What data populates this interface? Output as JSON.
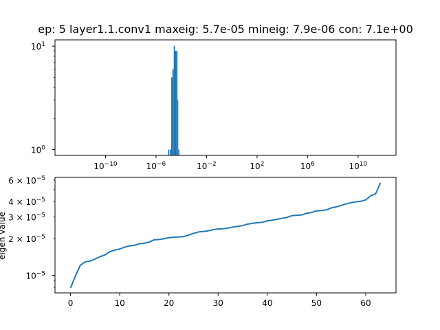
{
  "chart_data": [
    {
      "type": "bar",
      "title": "ep: 5 layer1.1.conv1 maxeig: 5.7e-05 mineig: 7.9e-06 con: 7.1e+00",
      "xscale": "log",
      "yscale": "log",
      "xlim_exp": [
        -14,
        13
      ],
      "ylim": [
        0.88,
        11.5
      ],
      "color": "#1f77b4",
      "x_ticks": [
        {
          "exp": -10,
          "label": "10",
          "sup": "−10"
        },
        {
          "exp": -6,
          "label": "10",
          "sup": "−6"
        },
        {
          "exp": -2,
          "label": "10",
          "sup": "−2"
        },
        {
          "exp": 2,
          "label": "10",
          "sup": "2"
        },
        {
          "exp": 6,
          "label": "10",
          "sup": "6"
        },
        {
          "exp": 10,
          "label": "10",
          "sup": "10"
        }
      ],
      "y_ticks": [
        {
          "value": 1,
          "label": "10",
          "sup": "0"
        },
        {
          "value": 10,
          "label": "10",
          "sup": "1"
        }
      ],
      "bins": [
        {
          "x_exp_start": -5.05,
          "x_exp_end": -4.95,
          "count": 1
        },
        {
          "x_exp_start": -4.9,
          "x_exp_end": -4.8,
          "count": 1
        },
        {
          "x_exp_start": -4.8,
          "x_exp_end": -4.7,
          "count": 5
        },
        {
          "x_exp_start": -4.7,
          "x_exp_end": -4.6,
          "count": 6
        },
        {
          "x_exp_start": -4.6,
          "x_exp_end": -4.5,
          "count": 10
        },
        {
          "x_exp_start": -4.5,
          "x_exp_end": -4.4,
          "count": 9
        },
        {
          "x_exp_start": -4.4,
          "x_exp_end": -4.3,
          "count": 9
        },
        {
          "x_exp_start": -4.3,
          "x_exp_end": -4.24,
          "count": 3
        },
        {
          "x_exp_start": -4.24,
          "x_exp_end": -4.15,
          "count": 1
        }
      ]
    },
    {
      "type": "line",
      "xscale": "linear",
      "yscale": "log",
      "ylabel": "eigen value",
      "xlim": [
        -3.15,
        66.15
      ],
      "ylim": [
        7.2e-06,
        6.3e-05
      ],
      "color": "#1f77b4",
      "x_ticks": [
        0,
        10,
        20,
        30,
        40,
        50,
        60
      ],
      "y_ticks": [
        {
          "value": 1e-05,
          "label": "10",
          "sup": "−5"
        },
        {
          "value": 2e-05,
          "label": "2 × 10",
          "sup": "−5"
        },
        {
          "value": 3e-05,
          "label": "3 × 10",
          "sup": "−5"
        },
        {
          "value": 4e-05,
          "label": "4 × 10",
          "sup": "−5"
        },
        {
          "value": 6e-05,
          "label": "6 × 10",
          "sup": "−5"
        }
      ],
      "x": [
        0,
        1,
        2,
        3,
        4,
        5,
        6,
        7,
        8,
        9,
        10,
        11,
        12,
        13,
        14,
        15,
        16,
        17,
        18,
        19,
        20,
        21,
        22,
        23,
        24,
        25,
        26,
        27,
        28,
        29,
        30,
        31,
        32,
        33,
        34,
        35,
        36,
        37,
        38,
        39,
        40,
        41,
        42,
        43,
        44,
        45,
        46,
        47,
        48,
        49,
        50,
        51,
        52,
        53,
        54,
        55,
        56,
        57,
        58,
        59,
        60,
        61,
        62,
        63
      ],
      "y": [
        7.9e-06,
        9.9e-06,
        1.21e-05,
        1.29e-05,
        1.31e-05,
        1.36e-05,
        1.42e-05,
        1.47e-05,
        1.56e-05,
        1.61e-05,
        1.64e-05,
        1.7e-05,
        1.74e-05,
        1.76e-05,
        1.81e-05,
        1.83e-05,
        1.87e-05,
        1.95e-05,
        1.96e-05,
        1.99e-05,
        2.03e-05,
        2.05e-05,
        2.06e-05,
        2.07e-05,
        2.13e-05,
        2.2e-05,
        2.26e-05,
        2.28e-05,
        2.31e-05,
        2.36e-05,
        2.39e-05,
        2.4e-05,
        2.43e-05,
        2.48e-05,
        2.51e-05,
        2.55e-05,
        2.62e-05,
        2.66e-05,
        2.69e-05,
        2.71e-05,
        2.78e-05,
        2.82e-05,
        2.87e-05,
        2.92e-05,
        2.97e-05,
        3.07e-05,
        3.09e-05,
        3.11e-05,
        3.21e-05,
        3.26e-05,
        3.36e-05,
        3.38e-05,
        3.42e-05,
        3.55e-05,
        3.62e-05,
        3.72e-05,
        3.83e-05,
        3.92e-05,
        3.98e-05,
        4.02e-05,
        4.13e-05,
        4.46e-05,
        4.62e-05,
        5.7e-05
      ]
    }
  ]
}
